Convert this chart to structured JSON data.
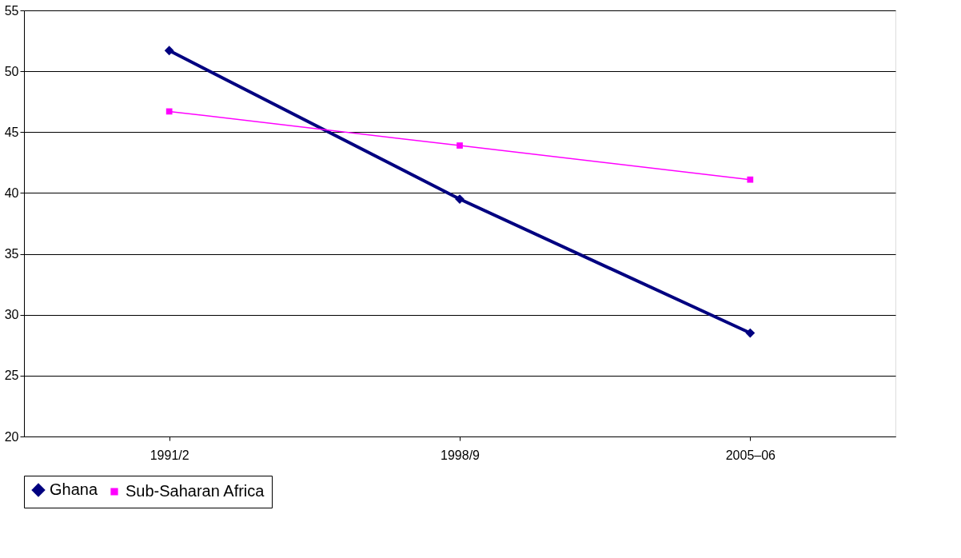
{
  "chart_data": {
    "type": "line",
    "categories": [
      "1991/2",
      "1998/9",
      "2005–06"
    ],
    "series": [
      {
        "name": "Ghana",
        "color": "#000080",
        "marker": "diamond",
        "values": [
          51.7,
          39.5,
          28.5
        ]
      },
      {
        "name": "Sub-Saharan Africa",
        "color": "#ff00ff",
        "marker": "square",
        "values": [
          46.7,
          43.9,
          41.1
        ]
      }
    ],
    "ylim": [
      20,
      55
    ],
    "yticks": [
      20,
      25,
      30,
      35,
      40,
      45,
      50,
      55
    ],
    "grid": "y",
    "legend": "bottom"
  }
}
